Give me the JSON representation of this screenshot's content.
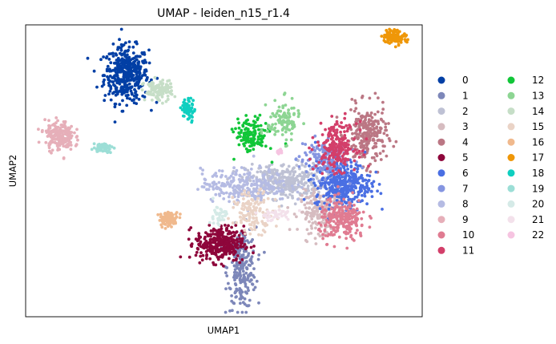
{
  "chart_data": {
    "type": "scatter",
    "title": "UMAP - leiden_n15_r1.4",
    "xlabel": "UMAP1",
    "ylabel": "UMAP2",
    "ticks_visible": false,
    "grid": false,
    "legend": {
      "placement": "right-outside",
      "columns": 2
    },
    "series": [
      {
        "name": "0",
        "color": "#023fa5",
        "cx": 0.254,
        "cy": 0.83,
        "sx": 0.028,
        "sy": 0.048,
        "n": 420
      },
      {
        "name": "1",
        "color": "#7d87b9",
        "cx": 0.545,
        "cy": 0.165,
        "sx": 0.018,
        "sy": 0.07,
        "n": 230
      },
      {
        "name": "2",
        "color": "#bec1d4",
        "cx": 0.655,
        "cy": 0.465,
        "sx": 0.05,
        "sy": 0.03,
        "n": 320
      },
      {
        "name": "3",
        "color": "#d6bcc0",
        "cx": 0.745,
        "cy": 0.36,
        "sx": 0.028,
        "sy": 0.035,
        "n": 210
      },
      {
        "name": "4",
        "color": "#bb7784",
        "cx": 0.86,
        "cy": 0.62,
        "sx": 0.025,
        "sy": 0.05,
        "n": 250
      },
      {
        "name": "5",
        "color": "#8e063b",
        "cx": 0.49,
        "cy": 0.25,
        "sx": 0.03,
        "sy": 0.03,
        "n": 330
      },
      {
        "name": "6",
        "color": "#4a6fe3",
        "cx": 0.8,
        "cy": 0.455,
        "sx": 0.035,
        "sy": 0.04,
        "n": 380
      },
      {
        "name": "7",
        "color": "#8595e1",
        "cx": 0.75,
        "cy": 0.545,
        "sx": 0.03,
        "sy": 0.035,
        "n": 140
      },
      {
        "name": "8",
        "color": "#b5bbe3",
        "cx": 0.555,
        "cy": 0.45,
        "sx": 0.055,
        "sy": 0.028,
        "n": 260
      },
      {
        "name": "9",
        "color": "#e6afb9",
        "cx": 0.085,
        "cy": 0.62,
        "sx": 0.018,
        "sy": 0.025,
        "n": 200
      },
      {
        "name": "10",
        "color": "#e07b91",
        "cx": 0.8,
        "cy": 0.33,
        "sx": 0.03,
        "sy": 0.035,
        "n": 230
      },
      {
        "name": "11",
        "color": "#d33f6a",
        "cx": 0.785,
        "cy": 0.585,
        "sx": 0.025,
        "sy": 0.04,
        "n": 220
      },
      {
        "name": "12",
        "color": "#11c638",
        "cx": 0.57,
        "cy": 0.62,
        "sx": 0.02,
        "sy": 0.03,
        "n": 140
      },
      {
        "name": "13",
        "color": "#8dd593",
        "cx": 0.65,
        "cy": 0.67,
        "sx": 0.02,
        "sy": 0.035,
        "n": 110
      },
      {
        "name": "14",
        "color": "#c6dec7",
        "cx": 0.335,
        "cy": 0.775,
        "sx": 0.018,
        "sy": 0.018,
        "n": 110
      },
      {
        "name": "15",
        "color": "#ead3c6",
        "cx": 0.575,
        "cy": 0.36,
        "sx": 0.025,
        "sy": 0.035,
        "n": 130
      },
      {
        "name": "16",
        "color": "#f0b98d",
        "cx": 0.36,
        "cy": 0.335,
        "sx": 0.012,
        "sy": 0.012,
        "n": 90
      },
      {
        "name": "17",
        "color": "#ef9708",
        "cx": 0.93,
        "cy": 0.96,
        "sx": 0.015,
        "sy": 0.012,
        "n": 110
      },
      {
        "name": "18",
        "color": "#0fcfc0",
        "cx": 0.41,
        "cy": 0.71,
        "sx": 0.008,
        "sy": 0.02,
        "n": 60
      },
      {
        "name": "19",
        "color": "#9cded6",
        "cx": 0.195,
        "cy": 0.58,
        "sx": 0.012,
        "sy": 0.008,
        "n": 60
      },
      {
        "name": "20",
        "color": "#d5eae7",
        "cx": 0.485,
        "cy": 0.345,
        "sx": 0.01,
        "sy": 0.02,
        "n": 40
      },
      {
        "name": "21",
        "color": "#f3e1eb",
        "cx": 0.63,
        "cy": 0.35,
        "sx": 0.025,
        "sy": 0.01,
        "n": 40
      },
      {
        "name": "22",
        "color": "#f6c4e1",
        "cx": 0.64,
        "cy": 0.565,
        "sx": 0.004,
        "sy": 0.004,
        "n": 14
      }
    ]
  }
}
